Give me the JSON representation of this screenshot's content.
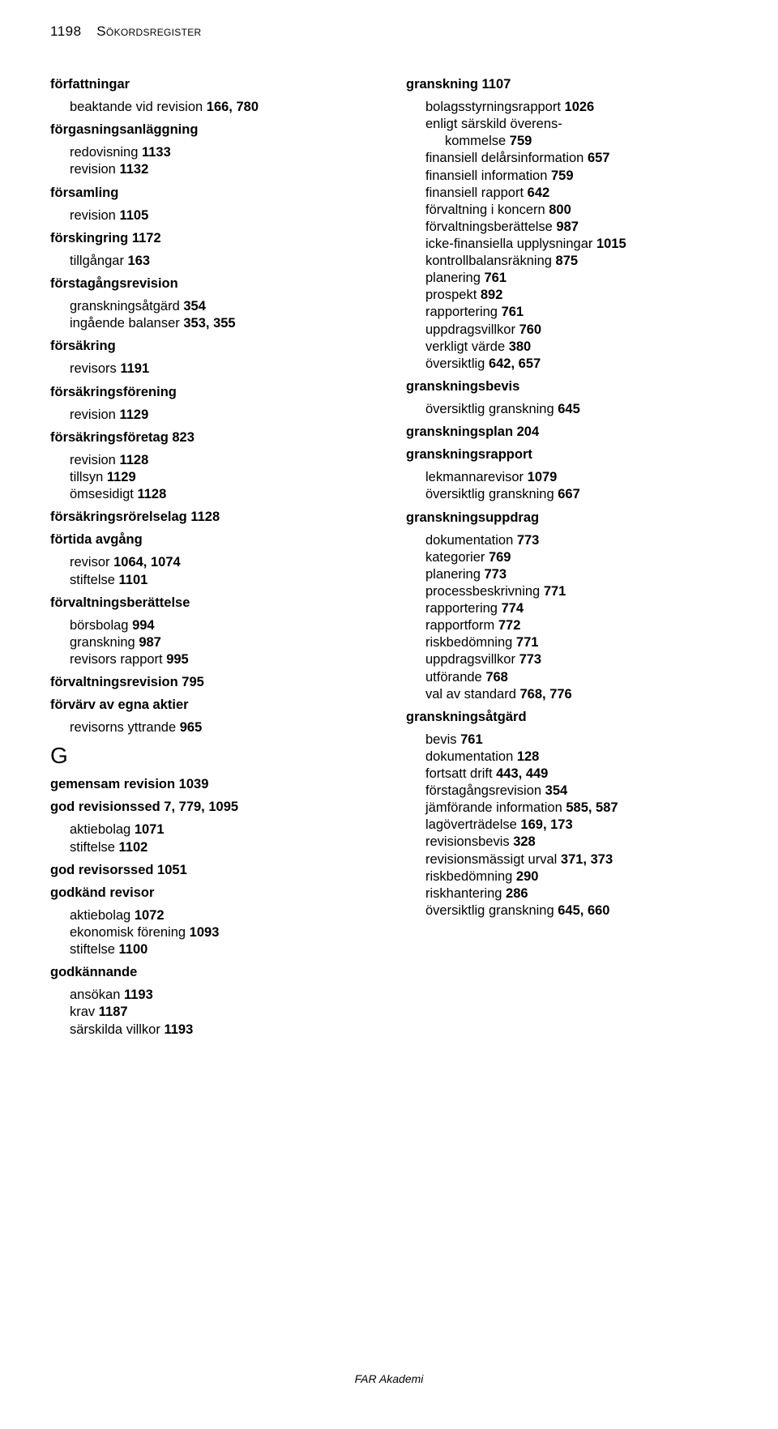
{
  "page_number": "1198",
  "page_title_small_caps": "Sökordsregister",
  "footer": "FAR Akademi",
  "left_column": [
    {
      "type": "head",
      "text": "författningar"
    },
    {
      "type": "sub",
      "text": "beaktande vid revision   166, 780"
    },
    {
      "type": "head",
      "text": "förgasningsanläggning"
    },
    {
      "type": "sub",
      "text": "redovisning   1133"
    },
    {
      "type": "sub",
      "text": "revision   1132"
    },
    {
      "type": "head",
      "text": "församling"
    },
    {
      "type": "sub",
      "text": "revision   1105"
    },
    {
      "type": "head",
      "text": "förskingring   1172"
    },
    {
      "type": "sub",
      "text": "tillgångar   163"
    },
    {
      "type": "head",
      "text": "förstagångsrevision"
    },
    {
      "type": "sub",
      "text": "granskningsåtgärd   354"
    },
    {
      "type": "sub",
      "text": "ingående balanser   353, 355"
    },
    {
      "type": "head",
      "text": "försäkring"
    },
    {
      "type": "sub",
      "text": "revisors   1191"
    },
    {
      "type": "head",
      "text": "försäkringsförening"
    },
    {
      "type": "sub",
      "text": "revision   1129"
    },
    {
      "type": "head",
      "text": "försäkringsföretag   823"
    },
    {
      "type": "sub",
      "text": "revision   1128"
    },
    {
      "type": "sub",
      "text": "tillsyn   1129"
    },
    {
      "type": "sub",
      "text": "ömsesidigt   1128"
    },
    {
      "type": "head",
      "text": "försäkringsrörelselag   1128"
    },
    {
      "type": "head",
      "text": "förtida avgång"
    },
    {
      "type": "sub",
      "text": "revisor   1064, 1074"
    },
    {
      "type": "sub",
      "text": "stiftelse   1101"
    },
    {
      "type": "head",
      "text": "förvaltningsberättelse"
    },
    {
      "type": "sub",
      "text": "börsbolag   994"
    },
    {
      "type": "sub",
      "text": "granskning   987"
    },
    {
      "type": "sub",
      "text": "revisors rapport   995"
    },
    {
      "type": "head",
      "text": "förvaltningsrevision   795"
    },
    {
      "type": "head",
      "text": "förvärv av egna aktier"
    },
    {
      "type": "sub",
      "text": "revisorns yttrande   965"
    },
    {
      "type": "bigletter",
      "text": "G"
    },
    {
      "type": "head",
      "text": "gemensam revision   1039"
    },
    {
      "type": "head",
      "text": "god revisionssed   7, 779, 1095"
    },
    {
      "type": "sub",
      "text": "aktiebolag   1071"
    },
    {
      "type": "sub",
      "text": "stiftelse   1102"
    },
    {
      "type": "head",
      "text": "god revisorssed   1051"
    },
    {
      "type": "head",
      "text": "godkänd revisor"
    },
    {
      "type": "sub",
      "text": "aktiebolag   1072"
    },
    {
      "type": "sub",
      "text": "ekonomisk förening   1093"
    },
    {
      "type": "sub",
      "text": "stiftelse   1100"
    },
    {
      "type": "head",
      "text": "godkännande"
    },
    {
      "type": "sub",
      "text": "ansökan   1193"
    },
    {
      "type": "sub",
      "text": "krav   1187"
    },
    {
      "type": "sub",
      "text": "särskilda villkor   1193"
    }
  ],
  "right_column": [
    {
      "type": "head",
      "text": "granskning   1107"
    },
    {
      "type": "sub",
      "text": "bolagsstyrningsrapport   1026"
    },
    {
      "type": "sub",
      "text": "enligt särskild överens-"
    },
    {
      "type": "subsub",
      "text": "kommelse   759"
    },
    {
      "type": "sub",
      "text": "finansiell delårsinformation   657"
    },
    {
      "type": "sub",
      "text": "finansiell information   759"
    },
    {
      "type": "sub",
      "text": "finansiell rapport   642"
    },
    {
      "type": "sub",
      "text": "förvaltning i koncern   800"
    },
    {
      "type": "sub",
      "text": "förvaltningsberättelse   987"
    },
    {
      "type": "sub",
      "text": "icke-finansiella upplysningar   1015"
    },
    {
      "type": "sub",
      "text": "kontrollbalansräkning   875"
    },
    {
      "type": "sub",
      "text": "planering   761"
    },
    {
      "type": "sub",
      "text": "prospekt   892"
    },
    {
      "type": "sub",
      "text": "rapportering   761"
    },
    {
      "type": "sub",
      "text": "uppdragsvillkor   760"
    },
    {
      "type": "sub",
      "text": "verkligt värde   380"
    },
    {
      "type": "sub",
      "text": "översiktlig   642, 657"
    },
    {
      "type": "head",
      "text": "granskningsbevis"
    },
    {
      "type": "sub",
      "text": "översiktlig granskning   645"
    },
    {
      "type": "head",
      "text": "granskningsplan   204"
    },
    {
      "type": "head",
      "text": "granskningsrapport"
    },
    {
      "type": "sub",
      "text": "lekmannarevisor   1079"
    },
    {
      "type": "sub",
      "text": "översiktlig granskning   667"
    },
    {
      "type": "head",
      "text": "granskningsuppdrag"
    },
    {
      "type": "sub",
      "text": "dokumentation   773"
    },
    {
      "type": "sub",
      "text": "kategorier   769"
    },
    {
      "type": "sub",
      "text": "planering   773"
    },
    {
      "type": "sub",
      "text": "processbeskrivning   771"
    },
    {
      "type": "sub",
      "text": "rapportering   774"
    },
    {
      "type": "sub",
      "text": "rapportform   772"
    },
    {
      "type": "sub",
      "text": "riskbedömning   771"
    },
    {
      "type": "sub",
      "text": "uppdragsvillkor   773"
    },
    {
      "type": "sub",
      "text": "utförande   768"
    },
    {
      "type": "sub",
      "text": "val av standard   768, 776"
    },
    {
      "type": "head",
      "text": "granskningsåtgärd"
    },
    {
      "type": "sub",
      "text": "bevis   761"
    },
    {
      "type": "sub",
      "text": "dokumentation   128"
    },
    {
      "type": "sub",
      "text": "fortsatt drift   443, 449"
    },
    {
      "type": "sub",
      "text": "förstagångsrevision   354"
    },
    {
      "type": "sub",
      "text": "jämförande information   585, 587"
    },
    {
      "type": "sub",
      "text": "lagöverträdelse   169, 173"
    },
    {
      "type": "sub",
      "text": "revisionsbevis   328"
    },
    {
      "type": "sub",
      "text": "revisionsmässigt urval   371, 373"
    },
    {
      "type": "sub",
      "text": "riskbedömning   290"
    },
    {
      "type": "sub",
      "text": "riskhantering   286"
    },
    {
      "type": "sub",
      "text": "översiktlig granskning   645, 660"
    }
  ]
}
